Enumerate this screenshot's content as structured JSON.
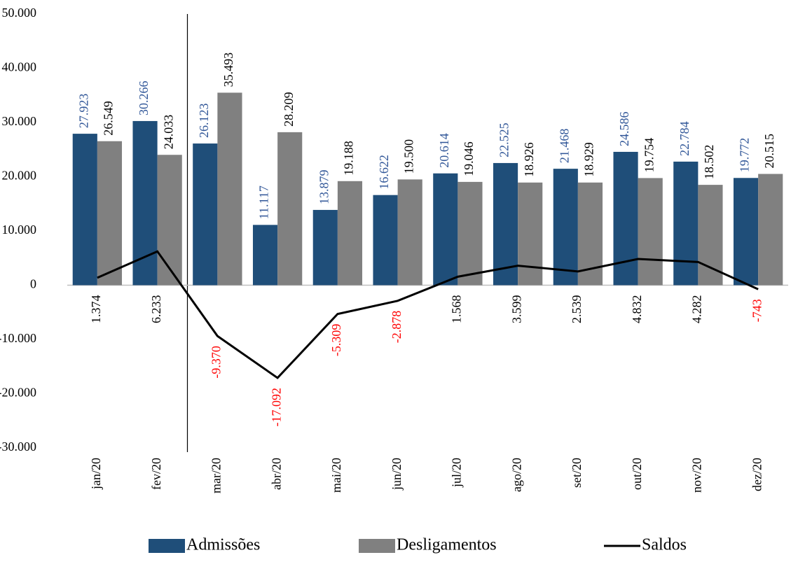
{
  "chart_data": {
    "type": "bar_line",
    "categories": [
      "jan/20",
      "fev/20",
      "mar/20",
      "abr/20",
      "mai/20",
      "jun/20",
      "jul/20",
      "ago/20",
      "set/20",
      "out/20",
      "nov/20",
      "dez/20"
    ],
    "series": [
      {
        "name": "Admissões",
        "type": "bar",
        "color": "#1f4e79",
        "label_color": "#2f5597",
        "values": [
          27923,
          30266,
          26123,
          11117,
          13879,
          16622,
          20614,
          22525,
          21468,
          24586,
          22784,
          19772
        ],
        "value_labels": [
          "27.923",
          "30.266",
          "26.123",
          "11.117",
          "13.879",
          "16.622",
          "20.614",
          "22.525",
          "21.468",
          "24.586",
          "22.784",
          "19.772"
        ]
      },
      {
        "name": "Desligamentos",
        "type": "bar",
        "color": "#808080",
        "label_color": "#000000",
        "values": [
          26549,
          24033,
          35493,
          28209,
          19188,
          19500,
          19046,
          18926,
          18929,
          19754,
          18502,
          20515
        ],
        "value_labels": [
          "26.549",
          "24.033",
          "35.493",
          "28.209",
          "19.188",
          "19.500",
          "19.046",
          "18.926",
          "18.929",
          "19.754",
          "18.502",
          "20.515"
        ]
      },
      {
        "name": "Saldos",
        "type": "line",
        "color": "#000000",
        "label_color": "#000000",
        "negative_label_color": "#ff0000",
        "values": [
          1374,
          6233,
          -9370,
          -17092,
          -5309,
          -2878,
          1568,
          3599,
          2539,
          4832,
          4282,
          -743
        ],
        "value_labels": [
          "1.374",
          "6.233",
          "-9.370",
          "-17.092",
          "-5.309",
          "-2.878",
          "1.568",
          "3.599",
          "2.539",
          "4.832",
          "4.282",
          "-743"
        ]
      }
    ],
    "ylim": [
      -30000,
      50000
    ],
    "yticks": [
      {
        "value": -30000,
        "label": "-30.000"
      },
      {
        "value": -20000,
        "label": "-20.000"
      },
      {
        "value": -10000,
        "label": "-10.000"
      },
      0,
      {
        "value": 10000,
        "label": "10.000"
      },
      {
        "value": 20000,
        "label": "20.000"
      },
      {
        "value": 30000,
        "label": "30.000"
      },
      {
        "value": 40000,
        "label": "40.000"
      },
      {
        "value": 50000,
        "label": "50.000"
      }
    ],
    "grid": false,
    "legend": "bottom"
  }
}
